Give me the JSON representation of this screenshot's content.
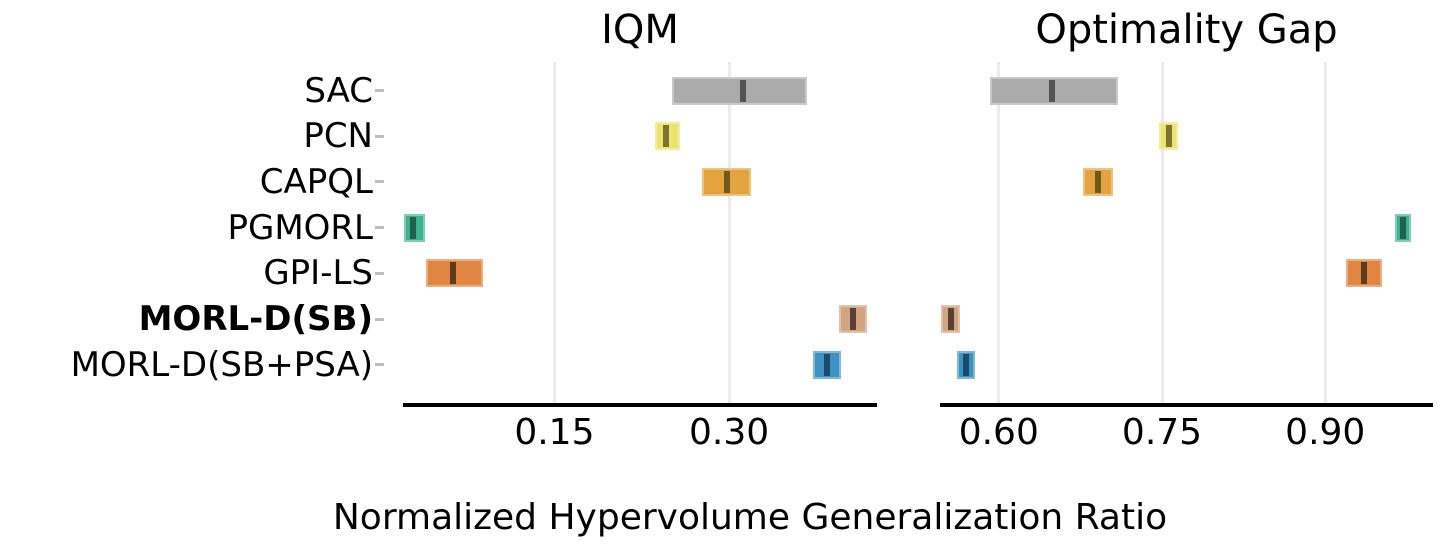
{
  "chart_data": {
    "type": "bar",
    "variant": "horizontal_interval_estimates",
    "xlabel": "Normalized Hypervolume Generalization Ratio",
    "grid": true,
    "legend_position": "none",
    "background_color": "#ffffff",
    "gridline_color": "#ebebeb",
    "spine_color": "#000000",
    "algorithms": [
      {
        "name": "SAC",
        "bold": false,
        "color": "#ababab",
        "point_color": "#545454"
      },
      {
        "name": "PCN",
        "bold": false,
        "color": "#ece46e",
        "point_color": "#7b7434"
      },
      {
        "name": "CAPQL",
        "bold": false,
        "color": "#e3a33d",
        "point_color": "#6e591e"
      },
      {
        "name": "PGMORL",
        "bold": false,
        "color": "#3db28e",
        "point_color": "#21604b"
      },
      {
        "name": "GPI-LS",
        "bold": false,
        "color": "#e08542",
        "point_color": "#5f3c1e"
      },
      {
        "name": "MORL-D(SB)",
        "bold": true,
        "color": "#d2a480",
        "point_color": "#594136"
      },
      {
        "name": "MORL-D(SB+PSA)",
        "bold": false,
        "color": "#3e92c2",
        "point_color": "#1d4a68"
      }
    ],
    "panels": [
      {
        "title": "IQM",
        "xlim": [
          0.02,
          0.427
        ],
        "xticks": [
          0.15,
          0.3
        ],
        "xtick_labels": [
          "0.15",
          "0.30"
        ],
        "series": [
          {
            "name": "SAC",
            "interval": [
              0.251,
              0.367
            ],
            "point": 0.312
          },
          {
            "name": "PCN",
            "interval": [
              0.236,
              0.258
            ],
            "point": 0.246
          },
          {
            "name": "CAPQL",
            "interval": [
              0.277,
              0.319
            ],
            "point": 0.298
          },
          {
            "name": "PGMORL",
            "interval": [
              0.021,
              0.039
            ],
            "point": 0.029
          },
          {
            "name": "GPI-LS",
            "interval": [
              0.04,
              0.089
            ],
            "point": 0.063
          },
          {
            "name": "MORL-D(SB)",
            "interval": [
              0.394,
              0.418
            ],
            "point": 0.406
          },
          {
            "name": "MORL-D(SB+PSA)",
            "interval": [
              0.372,
              0.396
            ],
            "point": 0.384
          }
        ]
      },
      {
        "title": "Optimality Gap",
        "xlim": [
          0.546,
          0.999
        ],
        "xticks": [
          0.6,
          0.75,
          0.9
        ],
        "xtick_labels": [
          "0.60",
          "0.75",
          "0.90"
        ],
        "series": [
          {
            "name": "SAC",
            "interval": [
              0.592,
              0.71
            ],
            "point": 0.649
          },
          {
            "name": "PCN",
            "interval": [
              0.747,
              0.765
            ],
            "point": 0.756
          },
          {
            "name": "CAPQL",
            "interval": [
              0.677,
              0.705
            ],
            "point": 0.691
          },
          {
            "name": "PGMORL",
            "interval": [
              0.964,
              0.979
            ],
            "point": 0.971
          },
          {
            "name": "GPI-LS",
            "interval": [
              0.919,
              0.952
            ],
            "point": 0.936
          },
          {
            "name": "MORL-D(SB)",
            "interval": [
              0.547,
              0.564
            ],
            "point": 0.556
          },
          {
            "name": "MORL-D(SB+PSA)",
            "interval": [
              0.562,
              0.578
            ],
            "point": 0.57
          }
        ]
      }
    ]
  }
}
